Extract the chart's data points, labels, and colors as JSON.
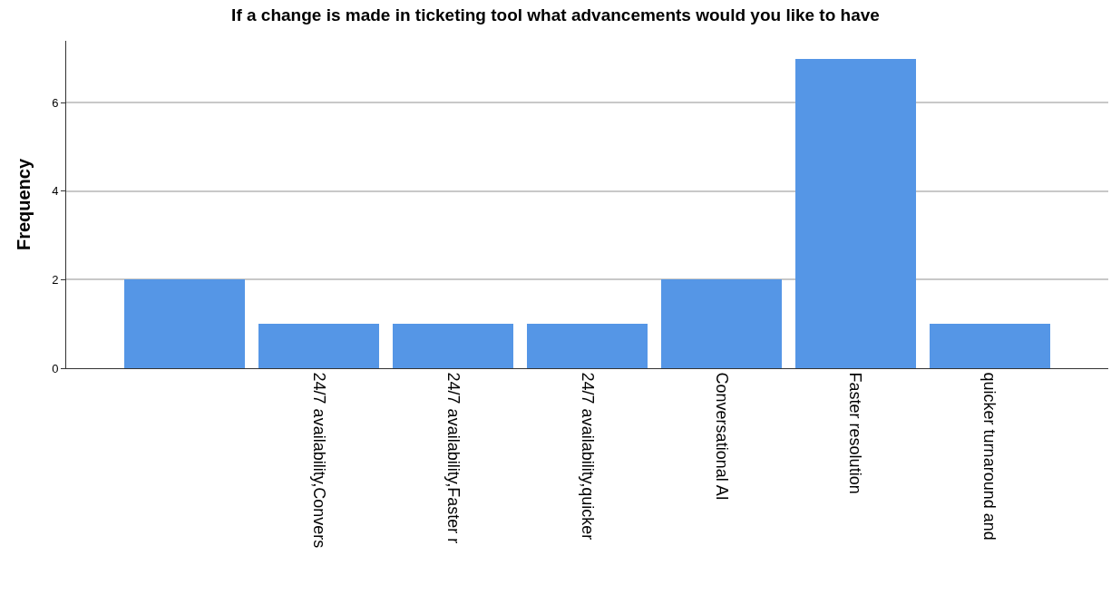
{
  "chart_data": {
    "type": "bar",
    "title": "If a change is made in ticketing tool what advancements would you like to have",
    "ylabel": "Frequency",
    "categories": [
      null,
      "24/7 availability,Convers",
      "24/7 availability,Faster r",
      "24/7 availability,quicker",
      "Conversational AI",
      "Faster resolution",
      "quicker turnaround and"
    ],
    "values": [
      2,
      1,
      1,
      1,
      2,
      7,
      1
    ],
    "color": "#5596e6",
    "ylim": [
      0,
      7.4
    ],
    "yticks": [
      0,
      2,
      4,
      6
    ],
    "grid": "y"
  }
}
